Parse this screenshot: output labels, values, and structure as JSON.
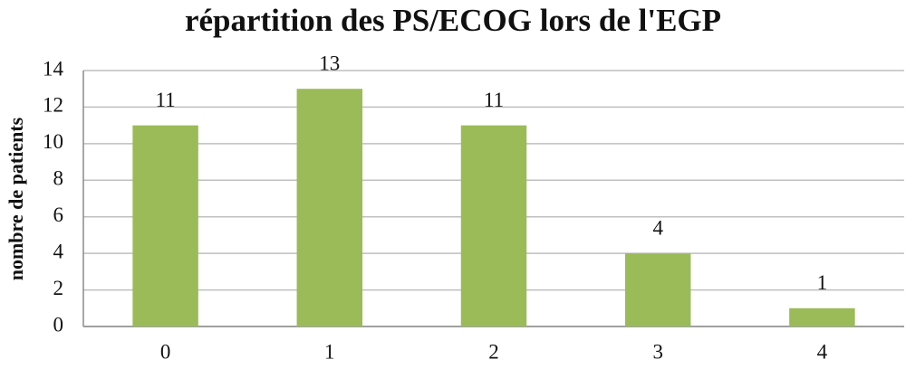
{
  "chart_data": {
    "type": "bar",
    "title": "répartition des PS/ECOG lors de l'EGP",
    "y_label": "nombre de patients",
    "categories": [
      "0",
      "1",
      "2",
      "3",
      "4"
    ],
    "values": [
      11,
      13,
      11,
      4,
      1
    ],
    "color": "#9bbb59",
    "ylim": [
      0,
      14
    ],
    "yticks": [
      0,
      2,
      4,
      6,
      8,
      10,
      12,
      14
    ],
    "grid": true
  }
}
